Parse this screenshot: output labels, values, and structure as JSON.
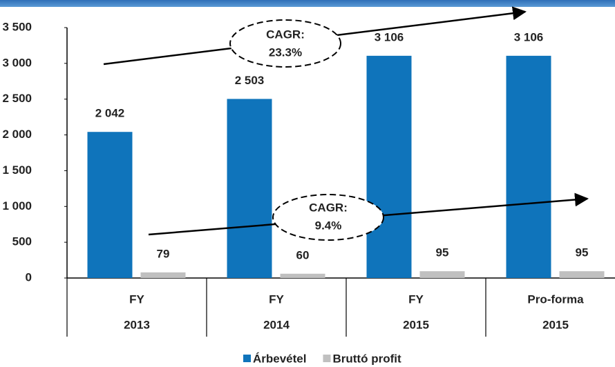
{
  "chart_data": {
    "type": "bar",
    "categories": [
      [
        "FY",
        "2013"
      ],
      [
        "FY",
        "2014"
      ],
      [
        "FY",
        "2015"
      ],
      [
        "Pro-forma",
        "2015"
      ]
    ],
    "series": [
      {
        "name": "Árbevétel",
        "color": "#0f74bb",
        "values": [
          2042,
          2503,
          3106,
          3106
        ],
        "value_labels": [
          "2 042",
          "2 503",
          "3 106",
          "3 106"
        ]
      },
      {
        "name": "Bruttó profit",
        "color": "#c0c0c0",
        "values": [
          79,
          60,
          95,
          95
        ]
      }
    ],
    "ylim": [
      0,
      3500
    ],
    "yticks": [
      0,
      500,
      {
        "value": 1000,
        "label": "1 000"
      },
      {
        "value": 1500,
        "label": "1 500"
      },
      {
        "value": 2000,
        "label": "2 000"
      },
      {
        "value": 2500,
        "label": "2 500"
      },
      {
        "value": 3000,
        "label": "3 000"
      },
      {
        "value": 3500,
        "label": "3 500"
      }
    ],
    "grid": false,
    "legend": "bottom",
    "annotations": [
      {
        "text": [
          "CAGR:",
          "23.3%"
        ]
      },
      {
        "text": [
          "CAGR:",
          "9.4%"
        ]
      }
    ]
  }
}
